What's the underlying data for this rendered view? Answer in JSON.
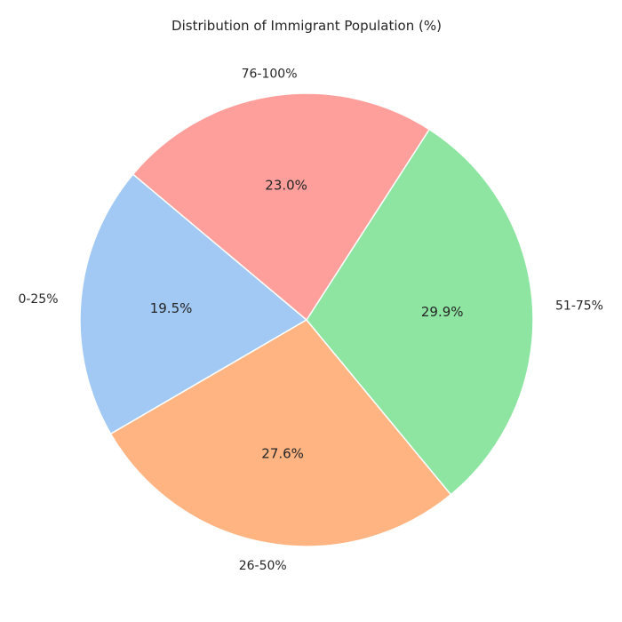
{
  "chart_data": {
    "type": "pie",
    "title": "Distribution of Immigrant Population (%)",
    "slices": [
      {
        "label": "0-25%",
        "value": 19.5,
        "pct_label": "19.5%",
        "color": "#a1c9f4"
      },
      {
        "label": "26-50%",
        "value": 27.6,
        "pct_label": "27.6%",
        "color": "#ffb482"
      },
      {
        "label": "51-75%",
        "value": 29.9,
        "pct_label": "29.9%",
        "color": "#8de5a1"
      },
      {
        "label": "76-100%",
        "value": 23.0,
        "pct_label": "23.0%",
        "color": "#ff9f9b"
      }
    ],
    "start_angle_deg": 140,
    "direction": "counterclockwise",
    "legend": "none"
  }
}
